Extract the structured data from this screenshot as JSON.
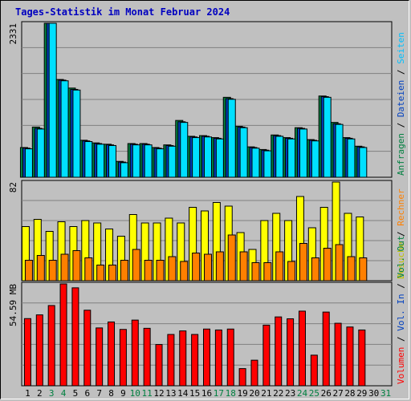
{
  "chart_data": {
    "type": "bar",
    "title": "Tages-Statistik im Monat Februar 2024",
    "days": [
      "1",
      "2",
      "3",
      "4",
      "5",
      "6",
      "7",
      "8",
      "9",
      "10",
      "11",
      "12",
      "13",
      "14",
      "15",
      "16",
      "17",
      "18",
      "19",
      "20",
      "21",
      "22",
      "23",
      "24",
      "25",
      "26",
      "27",
      "28",
      "29",
      "30",
      "31"
    ],
    "weekend_days": [
      "3",
      "4",
      "10",
      "11",
      "17",
      "18",
      "24",
      "25",
      "31"
    ],
    "day_label_colors": {
      "weekday": "#000000",
      "weekend": "#008040"
    },
    "panels": [
      {
        "name": "requests",
        "ymax_label": "2331",
        "ymax": 2331,
        "side_labels": [
          {
            "text": "Anfragen",
            "color": "#008040"
          },
          {
            "text": " / ",
            "color": "#000000"
          },
          {
            "text": "Dateien",
            "color": "#0040C0"
          },
          {
            "text": " / ",
            "color": "#000000"
          },
          {
            "text": "Seiten",
            "color": "#00C0FF"
          }
        ],
        "series": [
          {
            "key": "hits",
            "color": "#008040",
            "values": [
              450,
              760,
              2331,
              1480,
              1350,
              560,
              520,
              500,
              240,
              510,
              510,
              450,
              490,
              860,
              620,
              630,
              600,
              1210,
              770,
              460,
              420,
              640,
              600,
              750,
              570,
              1230,
              830,
              600,
              470,
              0,
              0
            ]
          },
          {
            "key": "files",
            "color": "#0040C0",
            "values": [
              440,
              740,
              2331,
              1470,
              1330,
              550,
              510,
              490,
              230,
              500,
              500,
              440,
              480,
              840,
              610,
              620,
              590,
              1190,
              760,
              450,
              410,
              630,
              590,
              740,
              560,
              1220,
              810,
              590,
              460,
              0,
              0
            ]
          },
          {
            "key": "pages",
            "color": "#00E0FF",
            "values": [
              430,
              730,
              2331,
              1460,
              1320,
              540,
              500,
              480,
              220,
              490,
              490,
              430,
              470,
              830,
              600,
              610,
              580,
              1180,
              750,
              440,
              400,
              620,
              580,
              730,
              550,
              1210,
              800,
              580,
              450,
              0,
              0
            ]
          }
        ]
      },
      {
        "name": "visits",
        "ymax_label": "82",
        "ymax": 82,
        "side_labels": [
          {
            "text": "Besuche",
            "color": "#C0C000"
          },
          {
            "text": " / ",
            "color": "#000000"
          },
          {
            "text": "Rechner",
            "color": "#FF8000"
          }
        ],
        "series": [
          {
            "key": "visits",
            "color": "#FFFF00",
            "values": [
              45,
              51,
              41,
              49,
              45,
              50,
              48,
              43,
              37,
              55,
              48,
              48,
              52,
              48,
              61,
              58,
              65,
              62,
              40,
              26,
              50,
              56,
              50,
              70,
              44,
              61,
              82,
              56,
              53,
              0,
              0
            ]
          },
          {
            "key": "sites",
            "color": "#FF8000",
            "values": [
              17,
              21,
              17,
              22,
              25,
              19,
              13,
              13,
              17,
              26,
              17,
              17,
              20,
              16,
              23,
              22,
              24,
              38,
              24,
              15,
              15,
              24,
              16,
              31,
              19,
              27,
              30,
              20,
              19,
              0,
              0
            ]
          }
        ]
      },
      {
        "name": "volume",
        "ymax_label": "54.59 MB",
        "ymax": 54.59,
        "side_labels": [
          {
            "text": "Volumen",
            "color": "#FF0000"
          },
          {
            "text": " / ",
            "color": "#000000"
          },
          {
            "text": "Vol. In",
            "color": "#0040C0"
          },
          {
            "text": " / ",
            "color": "#000000"
          },
          {
            "text": "Vol. Out",
            "color": "#008040"
          }
        ],
        "series": [
          {
            "key": "volume",
            "color": "#FF0000",
            "values": [
              36,
              38,
              43,
              54.59,
              52.5,
              40.5,
              31,
              34.2,
              30.2,
              35.2,
              30.8,
              22.1,
              27.5,
              29.4,
              27.5,
              30.4,
              29.9,
              30.4,
              9.2,
              13.7,
              32.5,
              36.9,
              35.9,
              40,
              16.4,
              39.5,
              33.5,
              31.5,
              29.9,
              0,
              0
            ]
          }
        ]
      }
    ]
  }
}
